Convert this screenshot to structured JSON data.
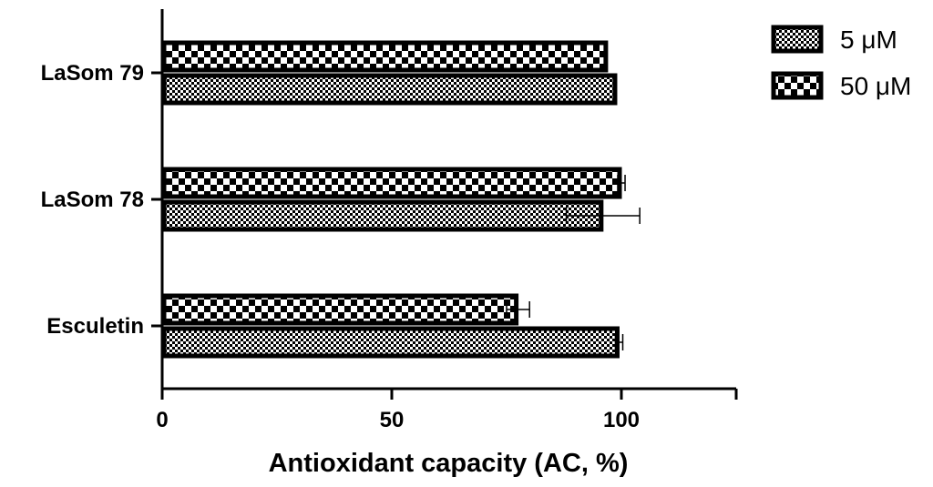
{
  "chart_data": {
    "type": "bar",
    "orientation": "horizontal",
    "categories": [
      "LaSom 79",
      "LaSom 78",
      "Esculetin"
    ],
    "series": [
      {
        "name": "5 μM",
        "pattern": "fine-checker",
        "values": [
          99,
          96,
          99.5
        ],
        "errors": [
          0,
          8,
          0.8
        ]
      },
      {
        "name": "50 μM",
        "pattern": "coarse-checker",
        "values": [
          97,
          100,
          77.5
        ],
        "errors": [
          0,
          0.8,
          2.5
        ]
      }
    ],
    "xlabel": "Antioxidant capacity (AC, %)",
    "ylabel": "",
    "xlim": [
      0,
      125
    ],
    "xticks": [
      "0",
      "50",
      "100"
    ],
    "grid": false,
    "legend_position": "top-right",
    "colors": {
      "bar_edge": "#000000",
      "pattern_dark": "#000000",
      "pattern_light": "#ffffff"
    }
  }
}
